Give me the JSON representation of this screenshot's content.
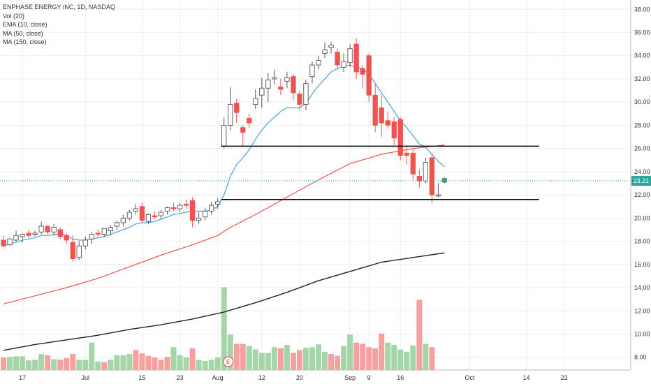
{
  "legend": {
    "title": "ENPHASE ENERGY INC, 1D, NASDAQ",
    "items": [
      "Vol (20)",
      "EMA (10, close)",
      "MA (50, close)",
      "MA (150, close)"
    ]
  },
  "price_badge": "23.21",
  "earnings_marker": "E",
  "colors": {
    "up": "#26a69a",
    "down": "#ef5350",
    "vol_up": "#a5d6a7",
    "vol_down": "#f8a0a0",
    "ema": "#4aa3d8",
    "ma50": "#ef5350",
    "ma150": "#222222",
    "grid": "#eeeeee",
    "last_line": "#26a69a"
  },
  "chart_data": {
    "type": "candlestick",
    "y_axis": {
      "ticks": [
        8,
        10,
        12,
        14,
        16,
        18,
        20,
        22,
        24,
        26,
        28,
        30,
        32,
        34,
        36,
        38
      ],
      "range": [
        6.9,
        38.8
      ]
    },
    "x_axis": {
      "ticks": [
        {
          "label": "17",
          "idx": 3
        },
        {
          "label": "Jul",
          "idx": 13
        },
        {
          "label": "15",
          "idx": 22
        },
        {
          "label": "23",
          "idx": 28
        },
        {
          "label": "Aug",
          "idx": 34
        },
        {
          "label": "12",
          "idx": 41
        },
        {
          "label": "20",
          "idx": 47
        },
        {
          "label": "Sep",
          "idx": 55
        },
        {
          "label": "9",
          "idx": 58
        },
        {
          "label": "16",
          "idx": 63
        },
        {
          "label": "Oct",
          "idx": 74
        },
        {
          "label": "14",
          "idx": 83
        },
        {
          "label": "22",
          "idx": 89
        }
      ]
    },
    "candles": [
      [
        0,
        18.1,
        18.5,
        17.5,
        17.6
      ],
      [
        1,
        17.7,
        18.3,
        17.6,
        18.2
      ],
      [
        2,
        18.1,
        18.9,
        18.0,
        18.5
      ],
      [
        3,
        18.4,
        18.7,
        17.9,
        18.6
      ],
      [
        4,
        18.7,
        19.0,
        18.3,
        18.5
      ],
      [
        5,
        18.6,
        18.9,
        18.4,
        18.7
      ],
      [
        6,
        18.8,
        19.7,
        18.6,
        19.3
      ],
      [
        7,
        19.3,
        19.4,
        18.6,
        18.8
      ],
      [
        8,
        18.8,
        19.5,
        18.5,
        19.2
      ],
      [
        9,
        19.0,
        19.2,
        18.2,
        18.4
      ],
      [
        10,
        18.5,
        18.7,
        17.8,
        18.1
      ],
      [
        11,
        17.9,
        18.5,
        16.3,
        16.5
      ],
      [
        12,
        16.6,
        18.0,
        16.4,
        17.6
      ],
      [
        13,
        17.6,
        18.4,
        17.3,
        18.1
      ],
      [
        14,
        18.2,
        18.8,
        17.8,
        18.6
      ],
      [
        15,
        18.7,
        19.0,
        18.4,
        18.6
      ],
      [
        16,
        18.6,
        19.1,
        18.4,
        19.1
      ],
      [
        17,
        18.9,
        19.4,
        18.5,
        19.2
      ],
      [
        18,
        19.3,
        19.8,
        19.0,
        19.6
      ],
      [
        19,
        19.6,
        20.3,
        19.3,
        20.0
      ],
      [
        20,
        20.0,
        20.7,
        19.8,
        20.5
      ],
      [
        21,
        20.6,
        21.2,
        20.3,
        20.8
      ],
      [
        22,
        21.0,
        21.3,
        19.6,
        19.8
      ],
      [
        23,
        19.7,
        20.4,
        19.5,
        20.3
      ],
      [
        24,
        20.2,
        20.6,
        19.9,
        20.1
      ],
      [
        25,
        20.2,
        20.7,
        19.9,
        20.5
      ],
      [
        26,
        20.6,
        21.0,
        20.3,
        20.9
      ],
      [
        27,
        20.9,
        21.3,
        20.6,
        20.8
      ],
      [
        28,
        20.8,
        21.3,
        20.5,
        21.1
      ],
      [
        29,
        21.2,
        21.6,
        20.8,
        21.1
      ],
      [
        30,
        21.5,
        21.8,
        19.2,
        19.8
      ],
      [
        31,
        19.8,
        20.5,
        19.5,
        20.0
      ],
      [
        32,
        20.1,
        20.9,
        19.8,
        20.6
      ],
      [
        33,
        20.6,
        21.4,
        20.3,
        21.1
      ],
      [
        34,
        21.2,
        21.7,
        20.8,
        21.4
      ],
      [
        35,
        26.2,
        28.7,
        26.0,
        28.0
      ],
      [
        36,
        28.0,
        31.3,
        27.6,
        29.8
      ],
      [
        37,
        29.9,
        30.3,
        28.2,
        29.1
      ],
      [
        38,
        27.8,
        28.0,
        26.2,
        27.4
      ],
      [
        39,
        28.6,
        29.0,
        27.8,
        28.2
      ],
      [
        40,
        29.8,
        31.1,
        29.4,
        30.3
      ],
      [
        41,
        30.6,
        32.1,
        29.5,
        31.2
      ],
      [
        42,
        31.2,
        32.5,
        30.0,
        31.9
      ],
      [
        43,
        32.0,
        32.8,
        31.5,
        32.1
      ],
      [
        44,
        31.3,
        32.0,
        30.6,
        31.1
      ],
      [
        45,
        31.8,
        32.6,
        31.2,
        32.1
      ],
      [
        46,
        32.2,
        32.4,
        30.2,
        30.8
      ],
      [
        47,
        30.7,
        31.0,
        29.3,
        29.8
      ],
      [
        48,
        29.8,
        31.9,
        29.3,
        31.6
      ],
      [
        49,
        32.2,
        33.5,
        31.6,
        33.2
      ],
      [
        50,
        33.2,
        34.0,
        32.8,
        33.6
      ],
      [
        51,
        34.2,
        35.1,
        33.8,
        34.5
      ],
      [
        52,
        34.7,
        35.2,
        34.2,
        34.9
      ],
      [
        53,
        34.3,
        34.6,
        32.8,
        33.2
      ],
      [
        54,
        33.0,
        34.2,
        32.6,
        33.5
      ],
      [
        55,
        33.4,
        35.0,
        33.0,
        34.6
      ],
      [
        56,
        35.0,
        35.5,
        32.0,
        32.6
      ],
      [
        57,
        32.9,
        33.2,
        31.2,
        32.4
      ],
      [
        58,
        34.0,
        34.2,
        30.0,
        30.6
      ],
      [
        59,
        30.6,
        31.6,
        27.4,
        28.0
      ],
      [
        60,
        29.5,
        30.6,
        27.0,
        28.2
      ],
      [
        61,
        28.4,
        29.2,
        27.7,
        28.0
      ],
      [
        62,
        28.3,
        28.7,
        26.3,
        26.9
      ],
      [
        63,
        28.5,
        28.7,
        25.0,
        25.4
      ],
      [
        64,
        25.6,
        26.2,
        24.6,
        25.4
      ],
      [
        65,
        25.6,
        25.9,
        23.2,
        23.8
      ],
      [
        66,
        23.6,
        24.2,
        22.6,
        23.2
      ],
      [
        67,
        23.2,
        25.2,
        23.0,
        24.8
      ],
      [
        68,
        25.2,
        25.6,
        21.3,
        22.0
      ],
      [
        69,
        21.9,
        23.0,
        21.8,
        22.0
      ],
      [
        70,
        23.1,
        23.5,
        23.0,
        23.4
      ]
    ],
    "volume": {
      "unit_scale": "relative",
      "values": [
        [
          0,
          2.2,
          "down"
        ],
        [
          1,
          2.3,
          "up"
        ],
        [
          2,
          2.4,
          "up"
        ],
        [
          3,
          2.4,
          "up"
        ],
        [
          4,
          1.7,
          "up"
        ],
        [
          5,
          1.8,
          "up"
        ],
        [
          6,
          2.8,
          "up"
        ],
        [
          7,
          2.6,
          "down"
        ],
        [
          8,
          1.9,
          "up"
        ],
        [
          9,
          1.8,
          "down"
        ],
        [
          10,
          2.1,
          "down"
        ],
        [
          11,
          2.8,
          "down"
        ],
        [
          12,
          1.8,
          "up"
        ],
        [
          13,
          1.8,
          "up"
        ],
        [
          14,
          4.8,
          "up"
        ],
        [
          15,
          1.5,
          "up"
        ],
        [
          16,
          1.4,
          "down"
        ],
        [
          17,
          1.8,
          "up"
        ],
        [
          18,
          2.6,
          "up"
        ],
        [
          19,
          2.6,
          "up"
        ],
        [
          20,
          2.8,
          "up"
        ],
        [
          21,
          3.5,
          "down"
        ],
        [
          22,
          2.9,
          "down"
        ],
        [
          23,
          2.5,
          "down"
        ],
        [
          24,
          2.2,
          "down"
        ],
        [
          25,
          1.8,
          "down"
        ],
        [
          26,
          2.3,
          "down"
        ],
        [
          27,
          4.0,
          "up"
        ],
        [
          28,
          2.6,
          "up"
        ],
        [
          29,
          2.2,
          "up"
        ],
        [
          30,
          3.8,
          "down"
        ],
        [
          31,
          1.8,
          "up"
        ],
        [
          32,
          1.6,
          "up"
        ],
        [
          33,
          1.8,
          "up"
        ],
        [
          34,
          2.2,
          "up"
        ],
        [
          35,
          14.5,
          "up"
        ],
        [
          36,
          6.2,
          "up"
        ],
        [
          37,
          4.6,
          "down"
        ],
        [
          38,
          4.6,
          "down"
        ],
        [
          39,
          4.2,
          "up"
        ],
        [
          40,
          3.6,
          "up"
        ],
        [
          41,
          3.0,
          "up"
        ],
        [
          42,
          3.0,
          "up"
        ],
        [
          43,
          4.0,
          "up"
        ],
        [
          44,
          3.8,
          "down"
        ],
        [
          45,
          4.4,
          "up"
        ],
        [
          46,
          3.0,
          "down"
        ],
        [
          47,
          3.5,
          "down"
        ],
        [
          48,
          3.9,
          "up"
        ],
        [
          49,
          4.0,
          "up"
        ],
        [
          50,
          4.5,
          "up"
        ],
        [
          51,
          3.2,
          "up"
        ],
        [
          52,
          2.8,
          "down"
        ],
        [
          53,
          2.5,
          "down"
        ],
        [
          54,
          4.2,
          "up"
        ],
        [
          55,
          6.2,
          "up"
        ],
        [
          56,
          4.8,
          "down"
        ],
        [
          57,
          4.6,
          "down"
        ],
        [
          58,
          4.0,
          "down"
        ],
        [
          59,
          3.8,
          "down"
        ],
        [
          60,
          6.4,
          "down"
        ],
        [
          61,
          4.8,
          "up"
        ],
        [
          62,
          4.4,
          "up"
        ],
        [
          63,
          3.6,
          "up"
        ],
        [
          64,
          3.2,
          "up"
        ],
        [
          65,
          4.3,
          "up"
        ],
        [
          66,
          12.3,
          "down"
        ],
        [
          67,
          4.6,
          "up"
        ],
        [
          68,
          4.0,
          "down"
        ]
      ]
    },
    "ema10": [
      [
        0,
        17.6
      ],
      [
        1,
        17.8
      ],
      [
        2,
        17.9
      ],
      [
        3,
        18.1
      ],
      [
        4,
        18.2
      ],
      [
        5,
        18.3
      ],
      [
        6,
        18.5
      ],
      [
        7,
        18.5
      ],
      [
        8,
        18.6
      ],
      [
        9,
        18.6
      ],
      [
        10,
        18.5
      ],
      [
        11,
        18.2
      ],
      [
        12,
        18.1
      ],
      [
        13,
        18.1
      ],
      [
        14,
        18.2
      ],
      [
        15,
        18.3
      ],
      [
        16,
        18.4
      ],
      [
        17,
        18.6
      ],
      [
        18,
        18.8
      ],
      [
        19,
        19.0
      ],
      [
        20,
        19.2
      ],
      [
        21,
        19.5
      ],
      [
        22,
        19.6
      ],
      [
        23,
        19.6
      ],
      [
        24,
        19.7
      ],
      [
        25,
        19.9
      ],
      [
        26,
        20.1
      ],
      [
        27,
        20.3
      ],
      [
        28,
        20.4
      ],
      [
        29,
        20.5
      ],
      [
        30,
        20.6
      ],
      [
        31,
        20.6
      ],
      [
        32,
        20.6
      ],
      [
        33,
        20.7
      ],
      [
        34,
        21.0
      ],
      [
        35,
        22.0
      ],
      [
        36,
        23.6
      ],
      [
        37,
        24.6
      ],
      [
        38,
        25.2
      ],
      [
        39,
        25.9
      ],
      [
        40,
        26.8
      ],
      [
        41,
        27.6
      ],
      [
        42,
        28.2
      ],
      [
        43,
        28.7
      ],
      [
        44,
        29.2
      ],
      [
        45,
        29.5
      ],
      [
        46,
        29.5
      ],
      [
        47,
        29.5
      ],
      [
        48,
        29.9
      ],
      [
        49,
        30.7
      ],
      [
        50,
        31.4
      ],
      [
        51,
        32.0
      ],
      [
        52,
        32.6
      ],
      [
        53,
        32.9
      ],
      [
        54,
        33.1
      ],
      [
        55,
        33.2
      ],
      [
        56,
        33.0
      ],
      [
        57,
        32.9
      ],
      [
        58,
        32.4
      ],
      [
        59,
        31.6
      ],
      [
        60,
        30.8
      ],
      [
        61,
        30.0
      ],
      [
        62,
        29.2
      ],
      [
        63,
        28.4
      ],
      [
        64,
        27.8
      ],
      [
        65,
        27.1
      ],
      [
        66,
        26.4
      ],
      [
        67,
        26.1
      ],
      [
        68,
        25.5
      ],
      [
        69,
        24.9
      ],
      [
        70,
        24.4
      ]
    ],
    "ma50": [
      [
        0,
        12.6
      ],
      [
        5,
        13.3
      ],
      [
        10,
        14.0
      ],
      [
        15,
        14.8
      ],
      [
        20,
        15.8
      ],
      [
        25,
        16.8
      ],
      [
        30,
        17.7
      ],
      [
        34,
        18.5
      ],
      [
        36,
        19.2
      ],
      [
        40,
        20.3
      ],
      [
        45,
        21.8
      ],
      [
        50,
        23.3
      ],
      [
        55,
        24.7
      ],
      [
        60,
        25.5
      ],
      [
        65,
        26.0
      ],
      [
        70,
        26.3
      ]
    ],
    "ma150": [
      [
        0,
        8.6
      ],
      [
        5,
        9.1
      ],
      [
        10,
        9.5
      ],
      [
        15,
        9.9
      ],
      [
        20,
        10.4
      ],
      [
        25,
        10.8
      ],
      [
        30,
        11.3
      ],
      [
        35,
        11.9
      ],
      [
        40,
        12.7
      ],
      [
        45,
        13.6
      ],
      [
        50,
        14.6
      ],
      [
        55,
        15.4
      ],
      [
        60,
        16.2
      ],
      [
        65,
        16.6
      ],
      [
        70,
        17.0
      ]
    ],
    "hlines": [
      {
        "y": 26.2,
        "from": 35,
        "to": 85
      },
      {
        "y": 21.6,
        "from": 35,
        "to": 85
      }
    ],
    "last_price": 23.21
  }
}
